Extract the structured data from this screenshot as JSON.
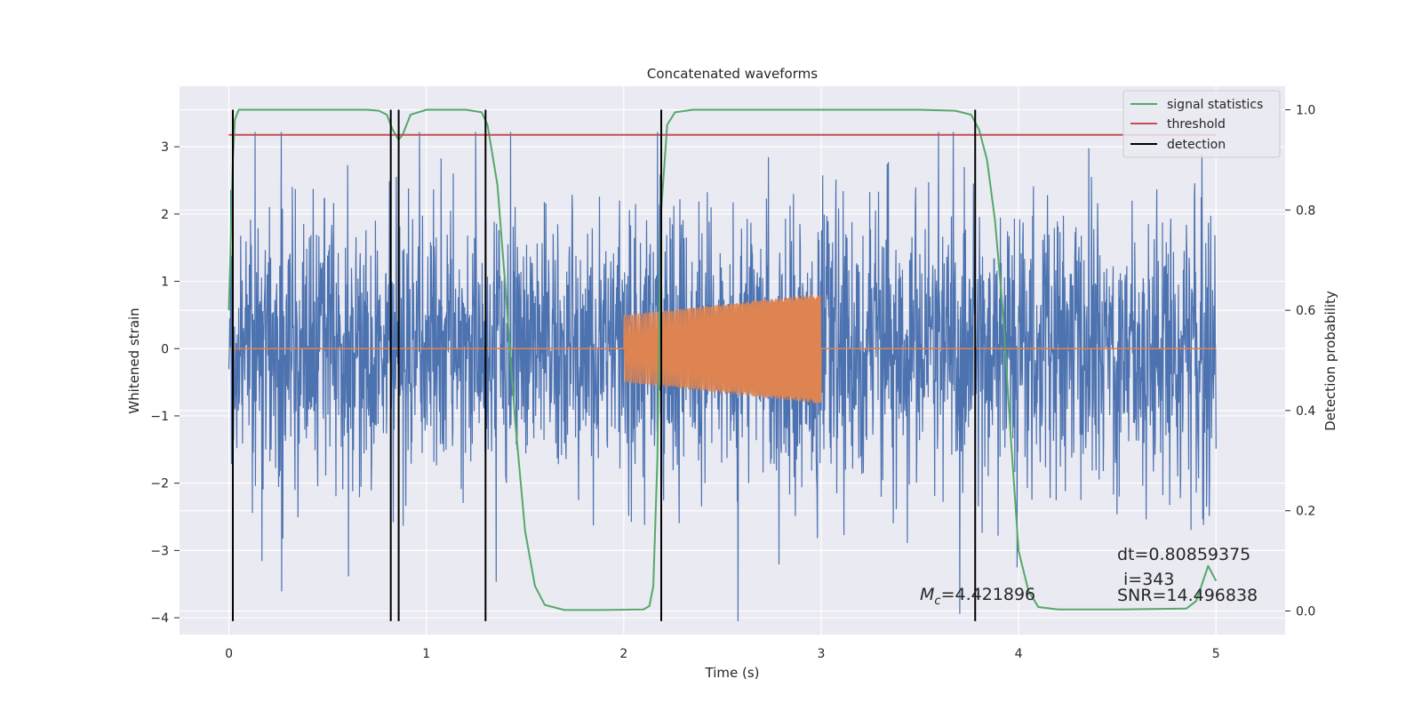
{
  "chart_data": {
    "type": "line",
    "title": "Concatenated waveforms",
    "xlabel": "Time (s)",
    "ylabel": "Whitened strain",
    "ylabel_right": "Detection probability",
    "xlim": [
      -0.25,
      5.35
    ],
    "ylim": [
      -4.25,
      3.9
    ],
    "ylim_right": [
      -0.047,
      1.047
    ],
    "x_ticks": [
      0,
      1,
      2,
      3,
      4,
      5
    ],
    "y_ticks": [
      -4,
      -3,
      -2,
      -1,
      0,
      1,
      2,
      3
    ],
    "y_right_ticks": [
      0.0,
      0.2,
      0.4,
      0.6,
      0.8,
      1.0
    ],
    "x_tick_labels": [
      "0",
      "1",
      "2",
      "3",
      "4",
      "5"
    ],
    "y_tick_labels": [
      "−4",
      "−3",
      "−2",
      "−1",
      "0",
      "1",
      "2",
      "3"
    ],
    "y_right_tick_labels": [
      "0.0",
      "0.2",
      "0.4",
      "0.6",
      "0.8",
      "1.0"
    ],
    "grid": true,
    "legend_position": "top-right",
    "colors": {
      "strain": "#4c72b0",
      "signal": "#dd8452",
      "statistic": "#55a868",
      "threshold": "#c44e52",
      "detection": "#000000",
      "axes_bg": "#eaeaf2",
      "grid": "#ffffff"
    },
    "series": [
      {
        "name": "signal statistics",
        "axis": "right",
        "color": "#55a868",
        "x": [
          0,
          0.01,
          0.02,
          0.03,
          0.05,
          0.08,
          0.15,
          0.4,
          0.7,
          0.76,
          0.8,
          0.83,
          0.86,
          0.88,
          0.92,
          1.0,
          1.2,
          1.28,
          1.31,
          1.36,
          1.4,
          1.45,
          1.5,
          1.55,
          1.6,
          1.7,
          1.9,
          2.1,
          2.13,
          2.15,
          2.17,
          2.19,
          2.22,
          2.26,
          2.35,
          2.6,
          3.0,
          3.5,
          3.68,
          3.76,
          3.8,
          3.84,
          3.88,
          3.92,
          3.96,
          4.0,
          4.05,
          4.1,
          4.2,
          4.5,
          4.85,
          4.9,
          4.93,
          4.96,
          4.98,
          5.0
        ],
        "y": [
          0.6,
          0.75,
          0.9,
          0.98,
          1.0,
          1.0,
          1.0,
          1.0,
          1.0,
          0.998,
          0.99,
          0.96,
          0.94,
          0.95,
          0.99,
          1.0,
          1.0,
          0.995,
          0.97,
          0.85,
          0.65,
          0.38,
          0.16,
          0.05,
          0.012,
          0.002,
          0.002,
          0.003,
          0.01,
          0.05,
          0.3,
          0.8,
          0.97,
          0.995,
          1.0,
          1.0,
          1.0,
          1.0,
          0.998,
          0.99,
          0.96,
          0.9,
          0.78,
          0.6,
          0.35,
          0.12,
          0.04,
          0.008,
          0.003,
          0.003,
          0.005,
          0.02,
          0.055,
          0.09,
          0.075,
          0.06
        ]
      },
      {
        "name": "threshold",
        "axis": "right",
        "color": "#c44e52",
        "x": [
          0,
          5
        ],
        "y": [
          0.95,
          0.95
        ]
      },
      {
        "name": "detection",
        "axis": "left",
        "color": "#000000",
        "x": [
          0.02,
          0.82,
          0.86,
          1.3,
          2.19,
          3.78
        ],
        "y_range": [
          -4.05,
          3.55
        ]
      }
    ],
    "strain_noise": {
      "axis": "left",
      "color": "#4c72b0",
      "x_range": [
        0,
        5
      ],
      "typical_amplitude": 1.6,
      "min": -4.05,
      "max": 3.22
    },
    "injected_signal": {
      "axis": "left",
      "color": "#dd8452",
      "x_range": [
        2.0,
        3.0
      ],
      "amplitude_start": 0.5,
      "amplitude_end": 0.82,
      "baseline": 0.0
    },
    "legend": [
      "signal statistics",
      "threshold",
      "detection"
    ],
    "annotations": {
      "mc_prefix": "M",
      "mc_sub": "c",
      "mc_value": "=4.421896",
      "dt": "dt=0.80859375",
      "i": "i=343",
      "snr": "SNR=14.496838"
    }
  }
}
